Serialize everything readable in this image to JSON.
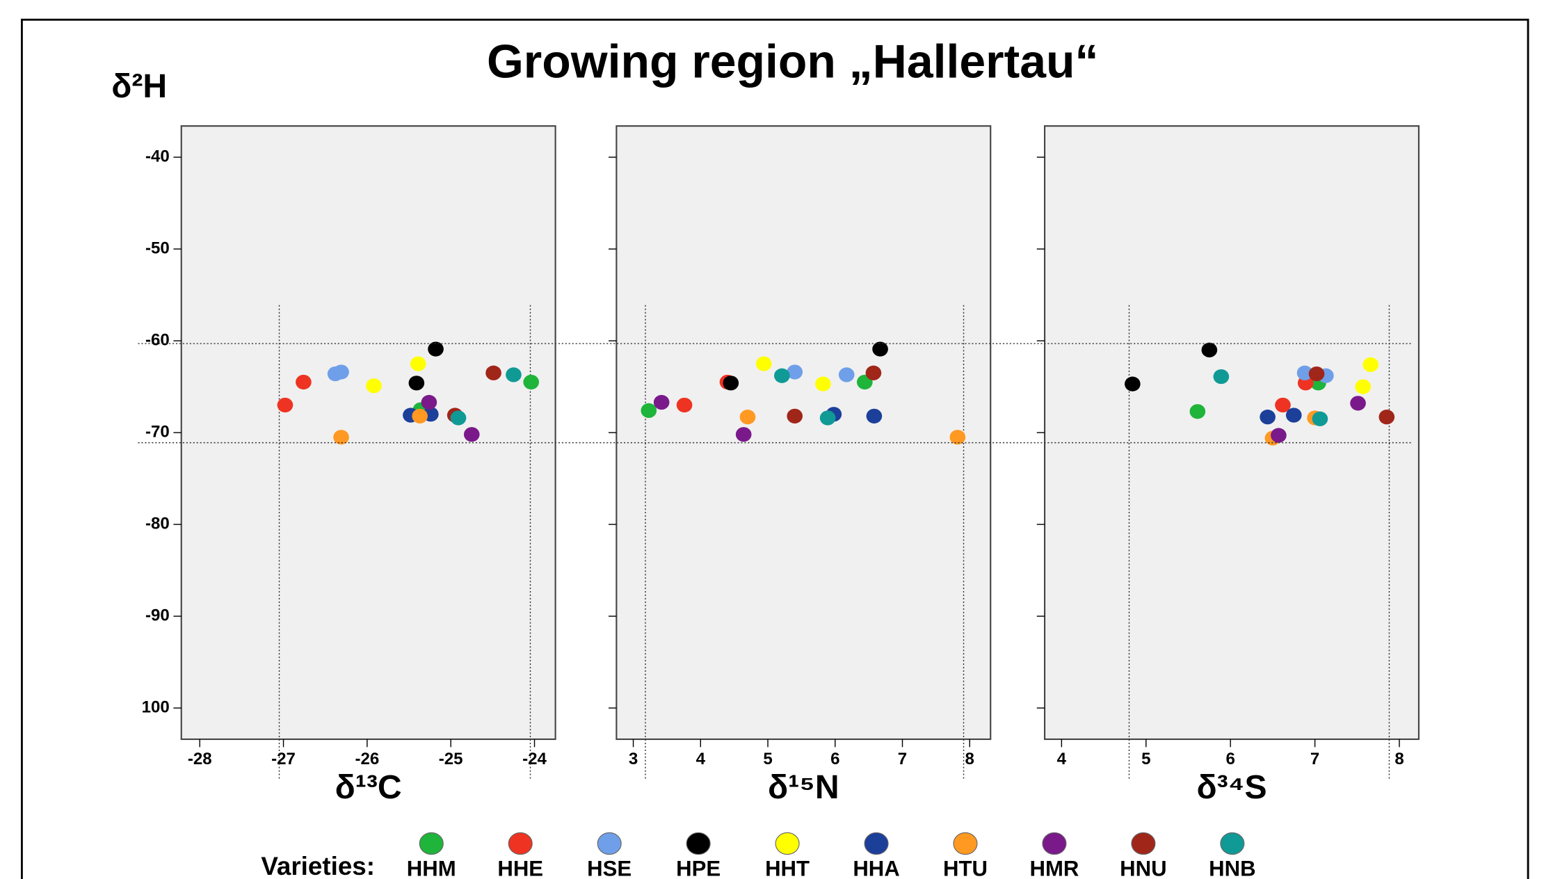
{
  "title": "Growing region „Hallertau“",
  "ylabel": "δ²H",
  "ylim": [
    -103.4,
    -36.6
  ],
  "yticks": [
    -40,
    -50,
    -60,
    -70,
    -80,
    -90,
    {
      "value": -100,
      "label": "100"
    }
  ],
  "hlines": [
    -60.3,
    -71.1
  ],
  "legend": {
    "title": "Varieties:",
    "names": [
      "HHM",
      "HHE",
      "HSE",
      "HPE",
      "HHT",
      "HHA",
      "HTU",
      "HMR",
      "HNU",
      "HNB"
    ],
    "colors": [
      "#1fb43a",
      "#ee3322",
      "#6f9fe8",
      "#000000",
      "#ffff00",
      "#1c3f9a",
      "#ff9922",
      "#7a1a8a",
      "#a0261a",
      "#109a96"
    ]
  },
  "chart_data": [
    {
      "type": "scatter",
      "xlabel": "δ¹³C",
      "xlim": [
        -28.22,
        -23.75
      ],
      "xticks": [
        -28,
        -27,
        -26,
        -25,
        -24
      ],
      "vlines": [
        -27.05,
        -24.05
      ],
      "series": [
        {
          "x": [
            -25.36,
            -24.04
          ],
          "y": [
            -67.5,
            -64.5
          ]
        },
        {
          "x": [
            -26.98,
            -26.76
          ],
          "y": [
            -67.0,
            -64.5
          ]
        },
        {
          "x": [
            -26.38,
            -26.31
          ],
          "y": [
            -63.6,
            -63.4
          ]
        },
        {
          "x": [
            -25.18,
            -25.41
          ],
          "y": [
            -60.9,
            -64.6
          ]
        },
        {
          "x": [
            -25.92,
            -25.39
          ],
          "y": [
            -64.9,
            -62.5
          ]
        },
        {
          "x": [
            -25.48,
            -25.24
          ],
          "y": [
            -68.1,
            -68.0
          ]
        },
        {
          "x": [
            -26.31,
            -25.37
          ],
          "y": [
            -70.5,
            -68.2
          ]
        },
        {
          "x": [
            -25.26,
            -24.75
          ],
          "y": [
            -66.7,
            -70.2
          ]
        },
        {
          "x": [
            -24.95,
            -24.49
          ],
          "y": [
            -68.1,
            -63.5
          ]
        },
        {
          "x": [
            -24.91,
            -24.25
          ],
          "y": [
            -68.4,
            -63.7
          ]
        }
      ]
    },
    {
      "type": "scatter",
      "xlabel": "δ¹⁵N",
      "xlim": [
        2.75,
        8.31
      ],
      "xticks": [
        3,
        4,
        5,
        6,
        7,
        8
      ],
      "vlines": [
        3.18,
        7.91
      ],
      "series": [
        {
          "x": [
            3.23,
            6.44
          ],
          "y": [
            -67.6,
            -64.5
          ]
        },
        {
          "x": [
            3.76,
            4.4
          ],
          "y": [
            -67.0,
            -64.5
          ]
        },
        {
          "x": [
            5.4,
            6.17
          ],
          "y": [
            -63.4,
            -63.7
          ]
        },
        {
          "x": [
            4.45,
            6.67
          ],
          "y": [
            -64.6,
            -60.9
          ]
        },
        {
          "x": [
            4.94,
            5.82
          ],
          "y": [
            -62.5,
            -64.7
          ]
        },
        {
          "x": [
            5.98,
            6.58
          ],
          "y": [
            -68.0,
            -68.2
          ]
        },
        {
          "x": [
            4.7,
            7.82
          ],
          "y": [
            -68.3,
            -70.5
          ]
        },
        {
          "x": [
            3.42,
            4.64
          ],
          "y": [
            -66.7,
            -70.2
          ]
        },
        {
          "x": [
            5.4,
            6.57
          ],
          "y": [
            -68.2,
            -63.5
          ]
        },
        {
          "x": [
            5.21,
            5.89
          ],
          "y": [
            -63.8,
            -68.4
          ]
        }
      ]
    },
    {
      "type": "scatter",
      "xlabel": "δ³⁴S",
      "xlim": [
        3.8,
        8.23
      ],
      "xticks": [
        4,
        5,
        6,
        7,
        8
      ],
      "vlines": [
        4.8,
        7.88
      ],
      "series": [
        {
          "x": [
            5.61,
            7.04
          ],
          "y": [
            -67.7,
            -64.6
          ]
        },
        {
          "x": [
            6.62,
            6.89
          ],
          "y": [
            -67.0,
            -64.6
          ]
        },
        {
          "x": [
            6.88,
            7.13
          ],
          "y": [
            -63.5,
            -63.8
          ]
        },
        {
          "x": [
            4.84,
            5.75
          ],
          "y": [
            -64.7,
            -61.0
          ]
        },
        {
          "x": [
            7.57,
            7.66
          ],
          "y": [
            -65.0,
            -62.6
          ]
        },
        {
          "x": [
            6.44,
            6.75
          ],
          "y": [
            -68.3,
            -68.1
          ]
        },
        {
          "x": [
            6.5,
            7.0
          ],
          "y": [
            -70.6,
            -68.4
          ]
        },
        {
          "x": [
            6.57,
            7.51
          ],
          "y": [
            -70.3,
            -66.8
          ]
        },
        {
          "x": [
            7.02,
            7.85
          ],
          "y": [
            -63.6,
            -68.3
          ]
        },
        {
          "x": [
            5.89,
            7.06
          ],
          "y": [
            -63.9,
            -68.5
          ]
        }
      ]
    }
  ]
}
